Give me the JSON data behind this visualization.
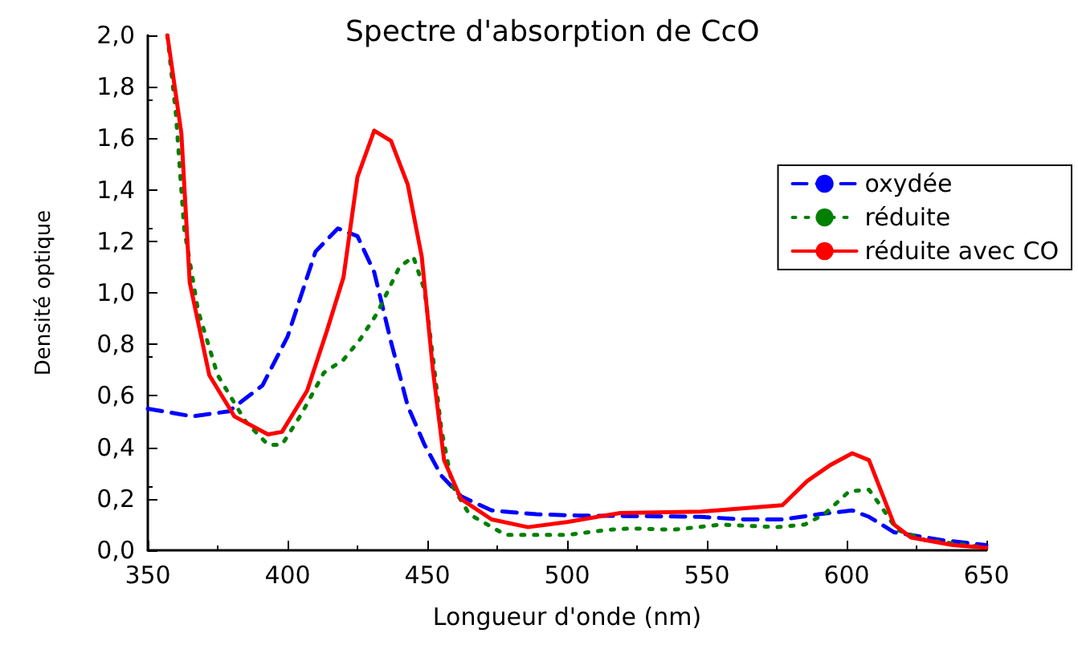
{
  "chart_data": {
    "type": "line",
    "title": "Spectre d'absorption de CcO",
    "xlabel": "Longueur d'onde (nm)",
    "ylabel": "Densité optique",
    "xlim": [
      350,
      650
    ],
    "xticks": [
      350,
      400,
      450,
      500,
      550,
      600,
      650
    ],
    "ylim": [
      0,
      2
    ],
    "yticks": [
      {
        "value": 0,
        "label": "0,0"
      },
      {
        "value": 0.2,
        "label": "0,2"
      },
      {
        "value": 0.4,
        "label": "0,4"
      },
      {
        "value": 0.6,
        "label": "0,6"
      },
      {
        "value": 0.8,
        "label": "0,8"
      },
      {
        "value": 1,
        "label": "1,0"
      },
      {
        "value": 1.2,
        "label": "1,2"
      },
      {
        "value": 1.4,
        "label": "1,4"
      },
      {
        "value": 1.6,
        "label": "1,6"
      },
      {
        "value": 1.8,
        "label": "1,8"
      },
      {
        "value": 2,
        "label": "2,0"
      }
    ],
    "grid": false,
    "legend": "top right",
    "marker": "none",
    "series": [
      {
        "name": "oxydée",
        "color": "#0000ff",
        "line_style": "dashed",
        "x": [
          350,
          366,
          379,
          391,
          400,
          410,
          418,
          425,
          431,
          437,
          443,
          449,
          455,
          462,
          473,
          489,
          504,
          548,
          563,
          577,
          590,
          602,
          608,
          617,
          634,
          650
        ],
        "values": [
          0.55,
          0.52,
          0.54,
          0.64,
          0.83,
          1.16,
          1.25,
          1.22,
          1.08,
          0.81,
          0.56,
          0.41,
          0.29,
          0.21,
          0.155,
          0.14,
          0.135,
          0.13,
          0.12,
          0.12,
          0.14,
          0.155,
          0.13,
          0.07,
          0.04,
          0.02
        ]
      },
      {
        "name": "réduite",
        "color": "#008000",
        "line_style": "dotted",
        "x": [
          357,
          360,
          363,
          368,
          375,
          385,
          393,
          398,
          405,
          413,
          420,
          426,
          432,
          440,
          445,
          449,
          452,
          455,
          459,
          465,
          478,
          500,
          515,
          523,
          538,
          555,
          575,
          585,
          592,
          601,
          608,
          613,
          618,
          628,
          650
        ],
        "values": [
          2.0,
          1.7,
          1.25,
          0.93,
          0.68,
          0.5,
          0.41,
          0.41,
          0.53,
          0.69,
          0.74,
          0.82,
          0.92,
          1.1,
          1.14,
          1.01,
          0.75,
          0.47,
          0.25,
          0.14,
          0.06,
          0.06,
          0.08,
          0.085,
          0.08,
          0.1,
          0.09,
          0.1,
          0.14,
          0.23,
          0.235,
          0.16,
          0.08,
          0.04,
          0.01
        ]
      },
      {
        "name": "réduite avec CO",
        "color": "#ff0000",
        "line_style": "solid",
        "x": [
          357,
          362,
          365,
          372,
          381,
          393,
          398,
          407,
          414,
          420,
          425,
          431,
          437,
          443,
          448,
          452,
          456,
          462,
          473,
          486,
          500,
          519,
          548,
          577,
          586,
          594,
          602,
          608,
          617,
          623,
          638,
          650
        ],
        "values": [
          2.0,
          1.62,
          1.04,
          0.68,
          0.52,
          0.45,
          0.46,
          0.62,
          0.85,
          1.06,
          1.45,
          1.63,
          1.59,
          1.42,
          1.14,
          0.7,
          0.35,
          0.2,
          0.12,
          0.09,
          0.11,
          0.145,
          0.15,
          0.175,
          0.27,
          0.33,
          0.377,
          0.35,
          0.1,
          0.05,
          0.02,
          0.01
        ]
      }
    ]
  }
}
